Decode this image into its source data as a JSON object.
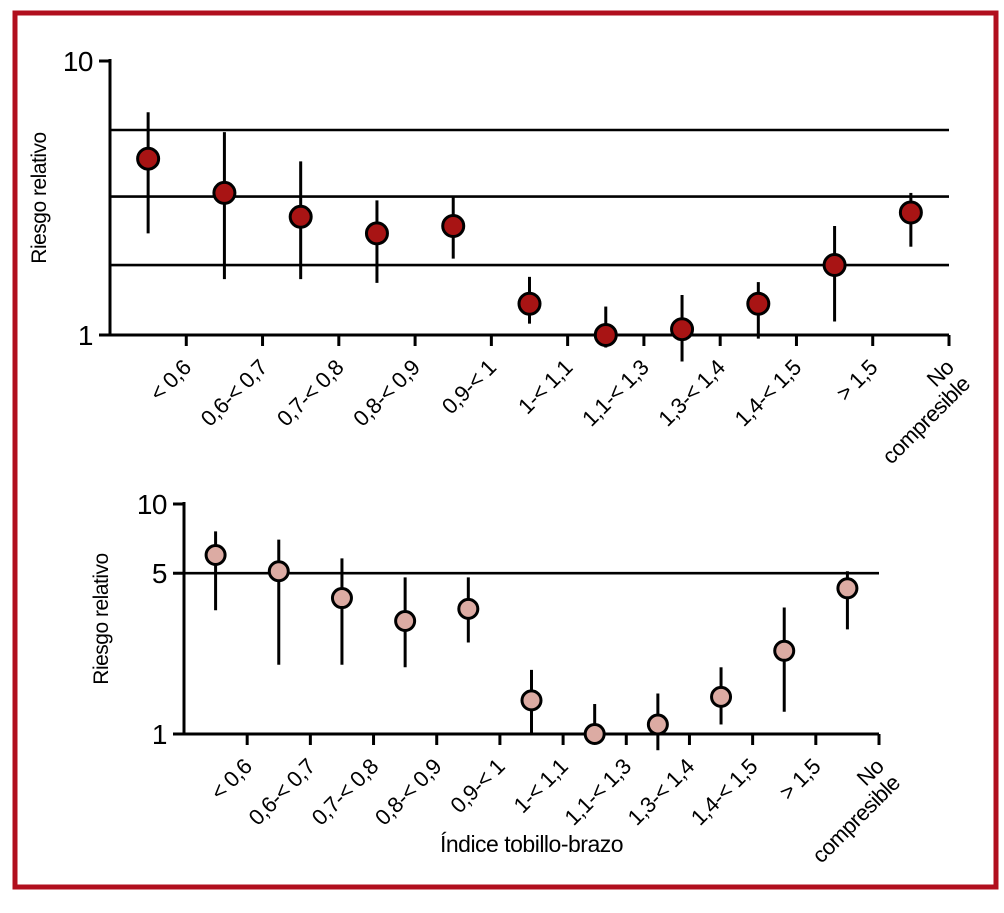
{
  "figure": {
    "frame_color": "#b10f1e",
    "background_color": "#ffffff",
    "axis_color": "#000000"
  },
  "chart_data": [
    {
      "type": "scatter",
      "panel": "top",
      "title": "",
      "ylabel": "Riesgo relativo",
      "xlabel": "",
      "y_scale": "log",
      "ylim": [
        1,
        10
      ],
      "y_ticks": [
        1,
        10
      ],
      "grid": false,
      "legend": "none",
      "reference_lines": [
        5.6,
        3.2,
        1.8
      ],
      "marker_color": "#a81414",
      "marker_outline": "#000000",
      "categories": [
        "< 0,6",
        "0,6-< 0,7",
        "0,7-< 0,8",
        "0,8-< 0,9",
        "0,9-< 1",
        "1-< 1,1",
        "1,1-< 1,3",
        "1,3-< 1,4",
        "1,4-< 1,5",
        "> 1,5",
        "No\ncompresible"
      ],
      "series": [
        {
          "name": "Riesgo relativo",
          "values": [
            4.4,
            3.3,
            2.7,
            2.35,
            2.5,
            1.3,
            1.0,
            1.05,
            1.3,
            1.8,
            2.8
          ],
          "ci_low": [
            2.35,
            1.6,
            1.6,
            1.55,
            1.9,
            1.1,
            0.9,
            0.8,
            0.97,
            1.12,
            2.1
          ],
          "ci_high": [
            6.5,
            5.5,
            4.3,
            3.1,
            3.2,
            1.63,
            1.27,
            1.4,
            1.56,
            2.5,
            3.3
          ]
        }
      ]
    },
    {
      "type": "scatter",
      "panel": "bottom",
      "title": "",
      "ylabel": "Riesgo relativo",
      "xlabel": "Índice tobillo-brazo",
      "y_scale": "log",
      "ylim": [
        1,
        10
      ],
      "y_ticks": [
        1,
        5,
        10
      ],
      "grid": false,
      "legend": "none",
      "reference_lines": [
        5
      ],
      "marker_color": "#dcaba3",
      "marker_outline": "#000000",
      "categories": [
        "< 0,6",
        "0,6-< 0,7",
        "0,7-< 0,8",
        "0,8-< 0,9",
        "0,9-< 1",
        "1-< 1,1",
        "1,1-< 1,3",
        "1,3-< 1,4",
        "1,4-< 1,5",
        "> 1,5",
        "No\ncompresible"
      ],
      "series": [
        {
          "name": "Riesgo relativo",
          "values": [
            6.0,
            5.1,
            3.9,
            3.1,
            3.5,
            1.4,
            1.0,
            1.1,
            1.45,
            2.3,
            4.3
          ],
          "ci_low": [
            3.45,
            2.0,
            2.0,
            1.95,
            2.5,
            1.0,
            0.95,
            0.85,
            1.1,
            1.25,
            2.85
          ],
          "ci_high": [
            7.6,
            7.0,
            5.8,
            4.8,
            4.8,
            1.9,
            1.35,
            1.5,
            1.95,
            3.55,
            5.1
          ]
        }
      ]
    }
  ]
}
